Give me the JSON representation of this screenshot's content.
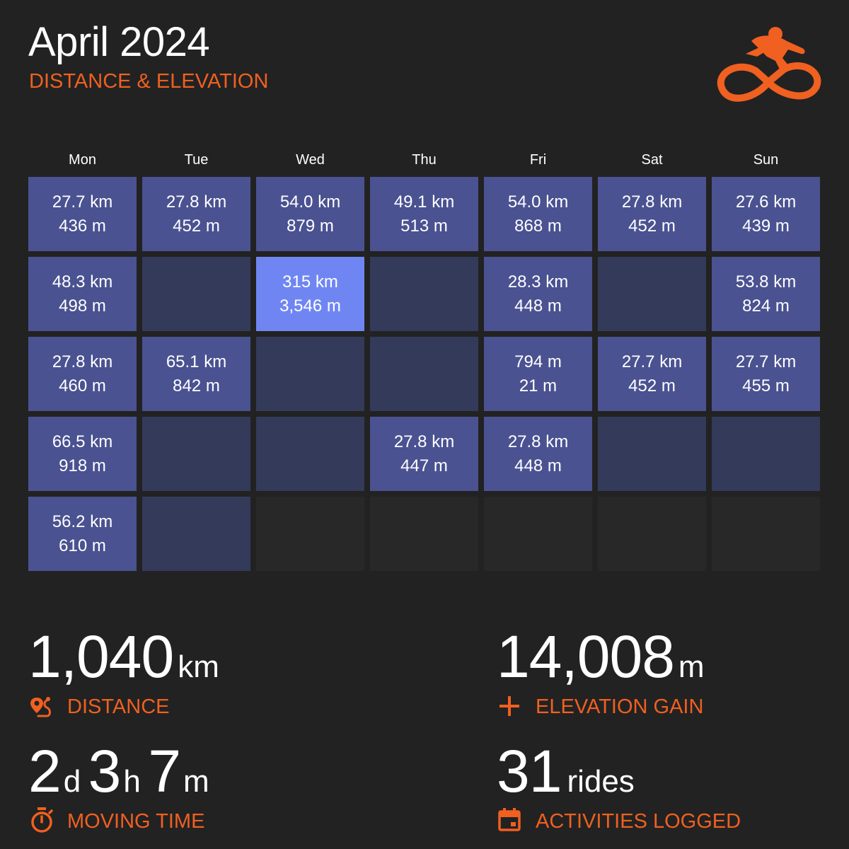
{
  "header": {
    "title": "April 2024",
    "subtitle": "DISTANCE & ELEVATION",
    "logo_icon": "cyclist-icon",
    "accent_color": "#f06020"
  },
  "calendar": {
    "weekdays": [
      "Mon",
      "Tue",
      "Wed",
      "Thu",
      "Fri",
      "Sat",
      "Sun"
    ],
    "colors": {
      "ride": "#4a5291",
      "no_ride": "#343a5a",
      "highlight": "#6f86f2",
      "outside_month": "#282828"
    },
    "weeks": [
      [
        {
          "distance": "27.7 km",
          "elevation": "436 m",
          "state": "ride"
        },
        {
          "distance": "27.8 km",
          "elevation": "452 m",
          "state": "ride"
        },
        {
          "distance": "54.0 km",
          "elevation": "879 m",
          "state": "ride"
        },
        {
          "distance": "49.1 km",
          "elevation": "513 m",
          "state": "ride"
        },
        {
          "distance": "54.0 km",
          "elevation": "868 m",
          "state": "ride"
        },
        {
          "distance": "27.8 km",
          "elevation": "452 m",
          "state": "ride"
        },
        {
          "distance": "27.6 km",
          "elevation": "439 m",
          "state": "ride"
        }
      ],
      [
        {
          "distance": "48.3 km",
          "elevation": "498 m",
          "state": "ride"
        },
        {
          "distance": "",
          "elevation": "",
          "state": "empty"
        },
        {
          "distance": "315 km",
          "elevation": "3,546 m",
          "state": "peak"
        },
        {
          "distance": "",
          "elevation": "",
          "state": "empty"
        },
        {
          "distance": "28.3 km",
          "elevation": "448 m",
          "state": "ride"
        },
        {
          "distance": "",
          "elevation": "",
          "state": "empty"
        },
        {
          "distance": "53.8 km",
          "elevation": "824 m",
          "state": "ride"
        }
      ],
      [
        {
          "distance": "27.8 km",
          "elevation": "460 m",
          "state": "ride"
        },
        {
          "distance": "65.1 km",
          "elevation": "842 m",
          "state": "ride"
        },
        {
          "distance": "",
          "elevation": "",
          "state": "empty"
        },
        {
          "distance": "",
          "elevation": "",
          "state": "empty"
        },
        {
          "distance": "794 m",
          "elevation": "21 m",
          "state": "ride"
        },
        {
          "distance": "27.7 km",
          "elevation": "452 m",
          "state": "ride"
        },
        {
          "distance": "27.7 km",
          "elevation": "455 m",
          "state": "ride"
        }
      ],
      [
        {
          "distance": "66.5 km",
          "elevation": "918 m",
          "state": "ride"
        },
        {
          "distance": "",
          "elevation": "",
          "state": "empty"
        },
        {
          "distance": "",
          "elevation": "",
          "state": "empty"
        },
        {
          "distance": "27.8 km",
          "elevation": "447 m",
          "state": "ride"
        },
        {
          "distance": "27.8 km",
          "elevation": "448 m",
          "state": "ride"
        },
        {
          "distance": "",
          "elevation": "",
          "state": "empty"
        },
        {
          "distance": "",
          "elevation": "",
          "state": "empty"
        }
      ],
      [
        {
          "distance": "56.2 km",
          "elevation": "610 m",
          "state": "ride"
        },
        {
          "distance": "",
          "elevation": "",
          "state": "empty"
        },
        {
          "distance": "",
          "elevation": "",
          "state": "outside"
        },
        {
          "distance": "",
          "elevation": "",
          "state": "outside"
        },
        {
          "distance": "",
          "elevation": "",
          "state": "outside"
        },
        {
          "distance": "",
          "elevation": "",
          "state": "outside"
        },
        {
          "distance": "",
          "elevation": "",
          "state": "outside"
        }
      ]
    ]
  },
  "stats": {
    "distance": {
      "value": "1,040",
      "unit": "km",
      "label": "DISTANCE",
      "icon": "route-icon"
    },
    "elevation": {
      "value": "14,008",
      "unit": "m",
      "label": "ELEVATION GAIN",
      "icon": "plus-icon"
    },
    "moving_time": {
      "days": "2",
      "days_unit": "d",
      "hours": "3",
      "hours_unit": "h",
      "minutes": "7",
      "minutes_unit": "m",
      "label": "MOVING TIME",
      "icon": "stopwatch-icon"
    },
    "activities": {
      "value": "31",
      "unit": "rides",
      "label": "ACTIVITIES LOGGED",
      "icon": "calendar-icon"
    }
  }
}
